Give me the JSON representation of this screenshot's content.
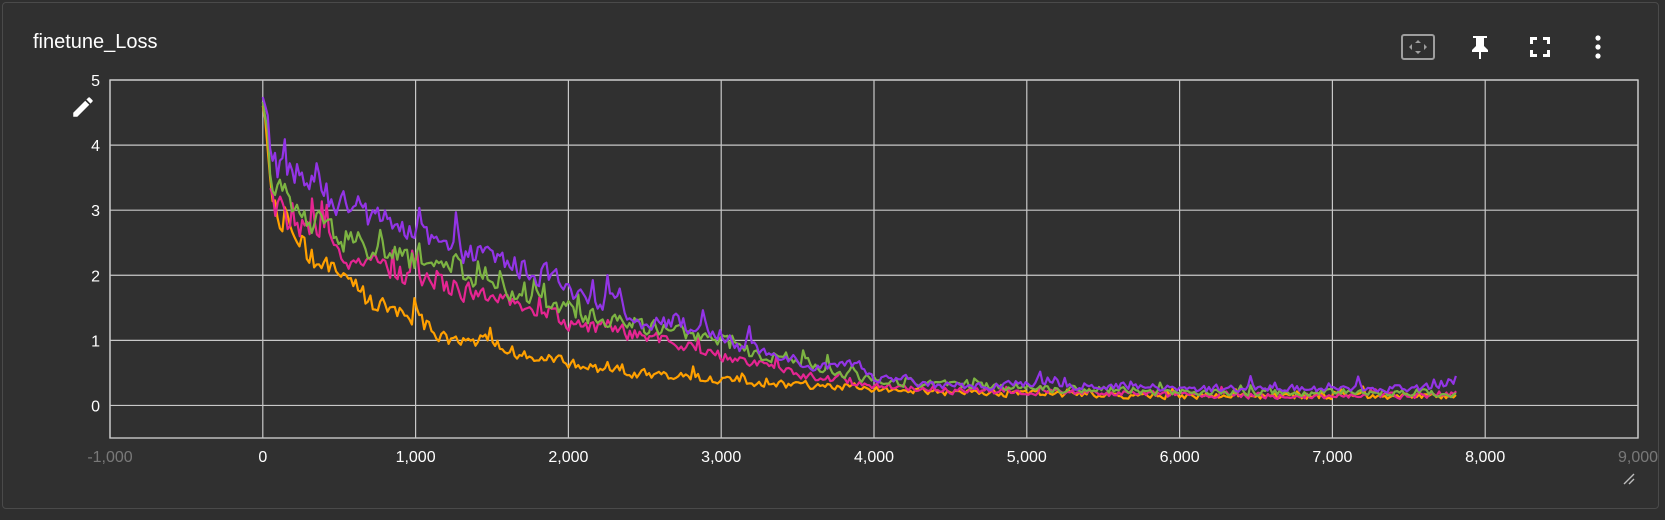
{
  "card": {
    "title": "finetune_Loss"
  },
  "toolbar": {
    "icons": [
      "fit-domain-icon",
      "pin-icon",
      "fullscreen-icon",
      "more-vert-icon"
    ]
  },
  "colors": {
    "background": "#303030",
    "grid": "#c8c8c8",
    "axis_text": "#ffffff",
    "series": [
      "#9334e6",
      "#7cb342",
      "#e52592",
      "#ffa000"
    ]
  },
  "chart_data": {
    "type": "line",
    "title": "finetune_Loss",
    "xlabel": "",
    "ylabel": "",
    "xlim": [
      -1000,
      9000
    ],
    "ylim": [
      -0.5,
      5
    ],
    "x_ticks": [
      -1000,
      0,
      1000,
      2000,
      3000,
      4000,
      5000,
      6000,
      7000,
      8000,
      9000
    ],
    "x_tick_labels": [
      "-1,000",
      "0",
      "1,000",
      "2,000",
      "3,000",
      "4,000",
      "5,000",
      "6,000",
      "7,000",
      "8,000",
      "9,000"
    ],
    "y_ticks": [
      0,
      1,
      2,
      3,
      4,
      5
    ],
    "y_tick_labels": [
      "0",
      "1",
      "2",
      "3",
      "4",
      "5"
    ],
    "grid": true,
    "legend": "none",
    "series": [
      {
        "color": "#9334e6",
        "x": [
          0,
          50,
          100,
          200,
          300,
          400,
          500,
          600,
          700,
          800,
          900,
          1000,
          1100,
          1200,
          1300,
          1400,
          1500,
          1600,
          1700,
          1800,
          1900,
          2000,
          2100,
          2200,
          2300,
          2400,
          2500,
          2600,
          2700,
          2800,
          2900,
          3000,
          3100,
          3200,
          3300,
          3400,
          3500,
          3600,
          3700,
          3800,
          3900,
          4000,
          4200,
          4400,
          4600,
          4800,
          5000,
          5200,
          5400,
          5600,
          5800,
          6000,
          6200,
          6400,
          6600,
          6800,
          7000,
          7200,
          7400,
          7600,
          7700,
          7800,
          7820
        ],
        "y": [
          4.6,
          4.0,
          3.7,
          3.6,
          3.4,
          3.2,
          3.1,
          3.0,
          2.9,
          2.9,
          2.7,
          2.6,
          2.5,
          2.4,
          2.3,
          2.3,
          2.3,
          2.2,
          2.1,
          2.0,
          2.0,
          1.7,
          1.6,
          1.6,
          1.7,
          1.3,
          1.3,
          1.3,
          1.3,
          1.2,
          1.1,
          1.1,
          0.9,
          0.9,
          0.8,
          0.8,
          0.7,
          0.6,
          0.6,
          0.6,
          0.6,
          0.4,
          0.4,
          0.3,
          0.3,
          0.3,
          0.35,
          0.3,
          0.3,
          0.3,
          0.28,
          0.25,
          0.25,
          0.27,
          0.27,
          0.25,
          0.27,
          0.25,
          0.27,
          0.27,
          0.3,
          0.35,
          0.5
        ]
      },
      {
        "color": "#7cb342",
        "x": [
          0,
          50,
          100,
          200,
          300,
          400,
          500,
          600,
          700,
          800,
          900,
          1000,
          1100,
          1200,
          1300,
          1400,
          1500,
          1600,
          1700,
          1800,
          1900,
          2000,
          2100,
          2200,
          2300,
          2400,
          2500,
          2600,
          2700,
          2800,
          2900,
          3000,
          3100,
          3200,
          3300,
          3400,
          3500,
          3600,
          3700,
          3800,
          3900,
          4000,
          4200,
          4400,
          4600,
          4800,
          5000,
          5200,
          5400,
          5600,
          5800,
          6000,
          6200,
          6400,
          6600,
          6800,
          7000,
          7200,
          7400,
          7600,
          7700,
          7800,
          7820
        ],
        "y": [
          4.5,
          3.7,
          3.3,
          3.0,
          2.8,
          2.7,
          2.6,
          2.5,
          2.4,
          2.3,
          2.3,
          2.2,
          2.2,
          2.2,
          2.0,
          1.9,
          1.9,
          1.8,
          1.7,
          1.6,
          1.5,
          1.5,
          1.4,
          1.35,
          1.3,
          1.3,
          1.2,
          1.2,
          1.15,
          1.05,
          1.0,
          1.0,
          0.9,
          0.8,
          0.75,
          0.75,
          0.7,
          0.6,
          0.55,
          0.5,
          0.45,
          0.4,
          0.35,
          0.35,
          0.3,
          0.3,
          0.3,
          0.25,
          0.25,
          0.25,
          0.2,
          0.2,
          0.2,
          0.2,
          0.2,
          0.2,
          0.2,
          0.2,
          0.18,
          0.2,
          0.2,
          0.18,
          0.15
        ]
      },
      {
        "color": "#e52592",
        "x": [
          50,
          100,
          200,
          300,
          400,
          500,
          600,
          700,
          800,
          900,
          1000,
          1100,
          1200,
          1300,
          1400,
          1500,
          1600,
          1700,
          1800,
          1900,
          2000,
          2100,
          2200,
          2300,
          2400,
          2500,
          2600,
          2700,
          2800,
          2900,
          3000,
          3100,
          3200,
          3300,
          3400,
          3500,
          3600,
          3700,
          3800,
          3900,
          4000,
          4200,
          4400,
          4600,
          4800,
          5000,
          5200,
          5400,
          5600,
          5800,
          6000,
          6200,
          6400,
          6600,
          6800,
          7000,
          7200,
          7400,
          7600,
          7700,
          7800,
          7820
        ],
        "y": [
          3.2,
          3.0,
          2.8,
          2.6,
          2.5,
          2.3,
          2.3,
          2.2,
          2.1,
          2.0,
          2.0,
          1.9,
          1.85,
          1.8,
          1.7,
          1.7,
          1.55,
          1.5,
          1.4,
          1.4,
          1.3,
          1.25,
          1.2,
          1.2,
          1.1,
          1.05,
          1.0,
          0.95,
          0.9,
          0.8,
          0.75,
          0.72,
          0.7,
          0.6,
          0.55,
          0.5,
          0.45,
          0.4,
          0.38,
          0.35,
          0.3,
          0.28,
          0.25,
          0.22,
          0.22,
          0.2,
          0.2,
          0.2,
          0.18,
          0.18,
          0.15,
          0.15,
          0.15,
          0.15,
          0.15,
          0.15,
          0.15,
          0.15,
          0.15,
          0.15,
          0.18,
          0.2
        ]
      },
      {
        "color": "#ffa000",
        "x": [
          0,
          50,
          100,
          200,
          300,
          400,
          500,
          600,
          700,
          800,
          900,
          1000,
          1100,
          1200,
          1300,
          1400,
          1500,
          1600,
          1700,
          1800,
          1900,
          2000,
          2100,
          2200,
          2300,
          2400,
          2500,
          2600,
          2700,
          2800,
          2900,
          3000,
          3100,
          3200,
          3300,
          3400,
          3500,
          3600,
          3700,
          3800,
          3900,
          4000,
          4200,
          4400,
          4600,
          4800,
          5000,
          5200,
          5400,
          5600,
          5800,
          6000,
          6200,
          6400,
          6600,
          6800,
          7000,
          7200,
          7400,
          7600,
          7700,
          7800,
          7820
        ],
        "y": [
          4.4,
          3.3,
          2.9,
          2.6,
          2.3,
          2.1,
          2.0,
          1.8,
          1.6,
          1.5,
          1.4,
          1.3,
          1.2,
          1.0,
          1.05,
          1.0,
          0.95,
          0.85,
          0.8,
          0.75,
          0.7,
          0.65,
          0.6,
          0.55,
          0.55,
          0.5,
          0.48,
          0.45,
          0.45,
          0.45,
          0.4,
          0.4,
          0.35,
          0.35,
          0.35,
          0.32,
          0.3,
          0.3,
          0.3,
          0.3,
          0.28,
          0.25,
          0.22,
          0.2,
          0.2,
          0.18,
          0.18,
          0.18,
          0.15,
          0.15,
          0.15,
          0.15,
          0.15,
          0.14,
          0.14,
          0.14,
          0.14,
          0.14,
          0.14,
          0.14,
          0.15,
          0.15,
          0.18
        ]
      }
    ]
  }
}
